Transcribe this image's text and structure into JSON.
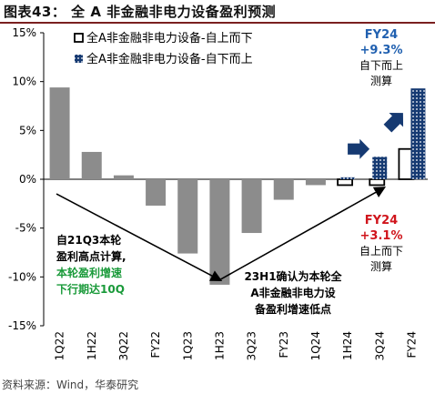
{
  "page": {
    "title": "图表43： 全 A 非金融非电力设备盈利预测",
    "source": "资料来源：Wind，华泰研究"
  },
  "colors": {
    "bar_gray": "#8c8c8c",
    "navy": "#163a72",
    "accent_blue": "#2060b0",
    "text_red": "#d0151c",
    "text_green": "#1a9a3a"
  },
  "legend": {
    "items": [
      {
        "name": "全A非金融非电力设备-自上而下",
        "style": "hollow"
      },
      {
        "name": "全A非金融非电力设备-自下而上",
        "style": "dotted"
      }
    ]
  },
  "annotations": {
    "fy24_bottom_up": [
      "FY24",
      "+9.3%",
      "自下而上",
      "测算"
    ],
    "fy24_top_down": [
      "FY24",
      "+3.1%",
      "自上而下",
      "测算"
    ],
    "high_point": [
      "自21Q3本轮",
      "盈利高点计算,",
      "本轮盈利增速",
      "下行期达10Q"
    ],
    "low_point": [
      "23H1确认为本轮全",
      "A非金融非电力设",
      "备盈利增速低点"
    ]
  },
  "chart_data": {
    "type": "bar",
    "categories": [
      "1Q22",
      "1H22",
      "3Q22",
      "FY22",
      "1Q23",
      "1H23",
      "3Q23",
      "FY23",
      "1Q24",
      "1H24",
      "3Q24",
      "FY24"
    ],
    "series": [
      {
        "name": "全A非金融非电力设备-自上而下",
        "values": [
          9.4,
          2.8,
          0.4,
          -2.7,
          -7.6,
          -10.8,
          -5.5,
          -2.1,
          -0.6,
          -0.6,
          -0.6,
          3.1
        ]
      },
      {
        "name": "全A非金融非电力设备-自下而上",
        "values": [
          null,
          null,
          null,
          null,
          null,
          null,
          null,
          null,
          null,
          0.2,
          2.3,
          9.3
        ]
      }
    ],
    "ylim": [
      -15,
      15
    ],
    "yticks": [
      15,
      10,
      5,
      0,
      -5,
      -10,
      -15
    ],
    "ytick_labels": [
      "15%",
      "10%",
      "5%",
      "0%",
      "-5%",
      "-10%",
      "-15%"
    ],
    "xlabel": "",
    "ylabel": "",
    "grid": false,
    "legend_position": "top-right"
  }
}
